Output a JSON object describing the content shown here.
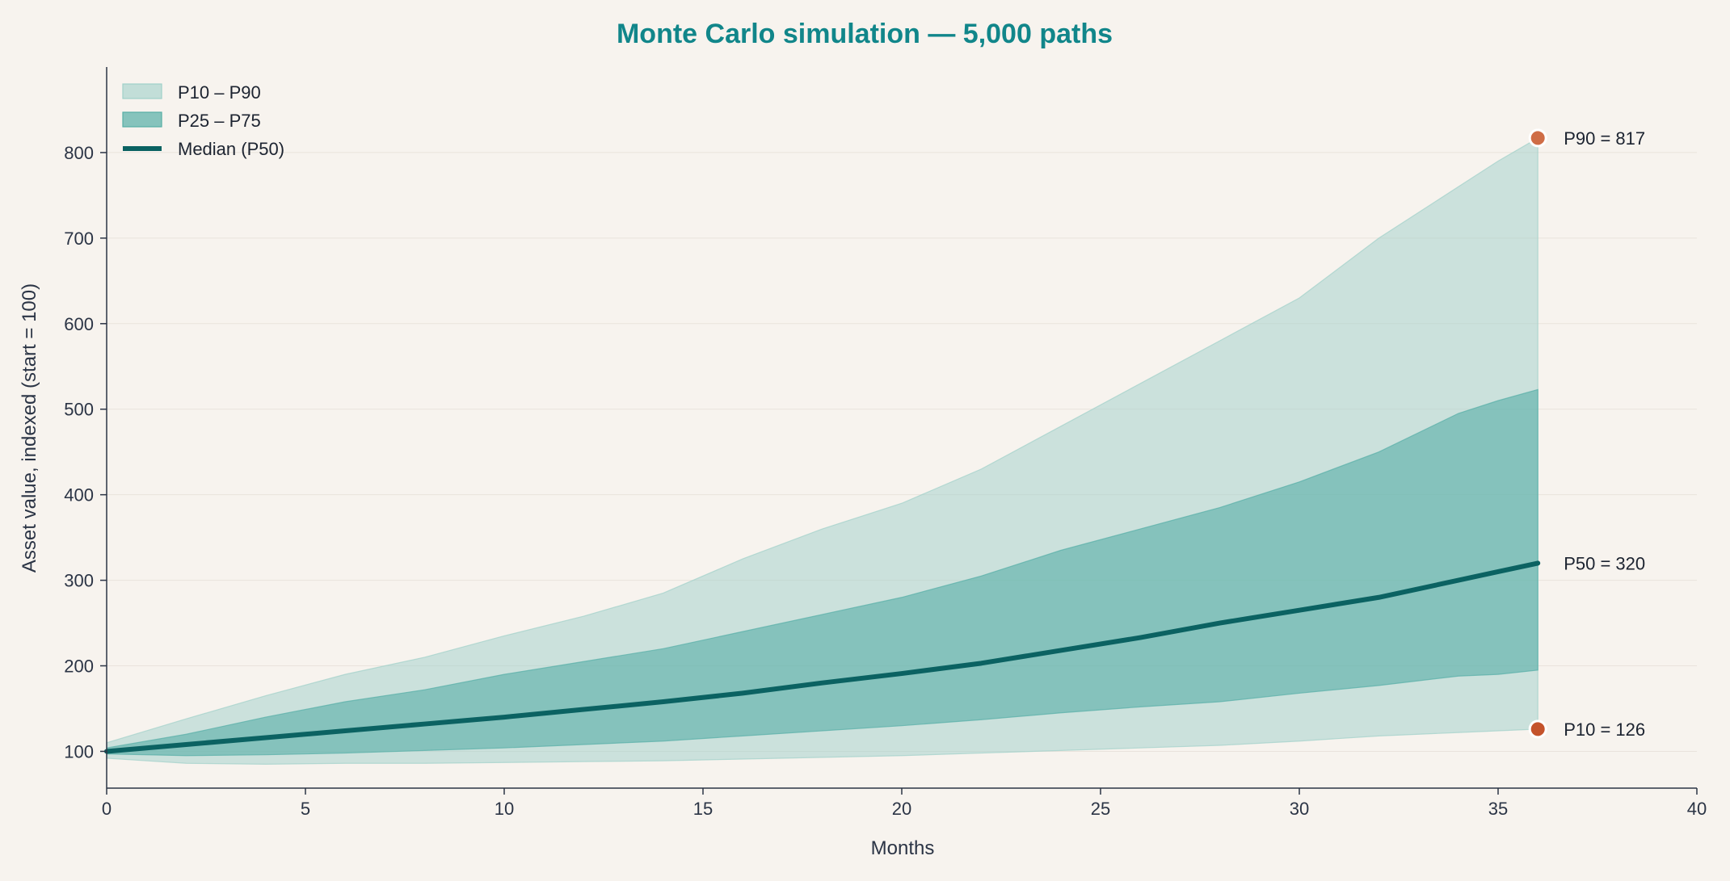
{
  "chart_data": {
    "type": "area",
    "title": "Monte Carlo simulation — 5,000 paths",
    "xlabel": "Months",
    "ylabel": "Asset value, indexed (start = 100)",
    "xlim": [
      0,
      40
    ],
    "ylim": [
      57,
      900
    ],
    "x_ticks": [
      0,
      5,
      10,
      15,
      20,
      25,
      30,
      35,
      40
    ],
    "y_ticks": [
      100,
      200,
      300,
      400,
      500,
      600,
      700,
      800
    ],
    "grid": "horizontal",
    "legend_position": "top-left",
    "colors": {
      "title": "#11868a",
      "band_outer": "#9fd0c9",
      "band_inner": "#56aea6",
      "median": "#0b6262",
      "marker_p90": "#cf6d46",
      "marker_p10": "#c4532b",
      "axis": "#2b3445",
      "background": "#f7f3ee"
    },
    "x": [
      0,
      2,
      4,
      6,
      8,
      10,
      12,
      14,
      16,
      18,
      20,
      22,
      24,
      26,
      28,
      30,
      32,
      34,
      35,
      36
    ],
    "series": [
      {
        "name": "P10 – P90",
        "kind": "band",
        "lower": [
          92,
          86,
          85,
          86,
          86,
          87,
          88,
          89,
          91,
          93,
          95,
          98,
          101,
          104,
          107,
          112,
          118,
          122,
          124,
          126
        ],
        "upper": [
          110,
          138,
          165,
          190,
          210,
          235,
          258,
          285,
          325,
          360,
          390,
          430,
          480,
          530,
          580,
          630,
          700,
          760,
          790,
          817
        ]
      },
      {
        "name": "P25 – P75",
        "kind": "band",
        "lower": [
          97,
          95,
          96,
          98,
          101,
          104,
          108,
          112,
          118,
          124,
          130,
          137,
          145,
          152,
          158,
          168,
          177,
          188,
          190,
          195
        ],
        "upper": [
          104,
          120,
          140,
          158,
          172,
          190,
          205,
          220,
          240,
          260,
          280,
          305,
          335,
          360,
          385,
          415,
          450,
          495,
          510,
          523
        ]
      },
      {
        "name": "Median (P50)",
        "kind": "line",
        "values": [
          100,
          108,
          116,
          124,
          132,
          140,
          149,
          158,
          168,
          180,
          191,
          203,
          218,
          233,
          250,
          265,
          280,
          300,
          310,
          320
        ]
      }
    ],
    "annotations": [
      {
        "label": "P90 = 817",
        "x": 36,
        "y": 817,
        "marker": "p90"
      },
      {
        "label": "P50 = 320",
        "x": 36,
        "y": 320,
        "marker": "none"
      },
      {
        "label": "P10 = 126",
        "x": 36,
        "y": 126,
        "marker": "p10"
      }
    ]
  }
}
